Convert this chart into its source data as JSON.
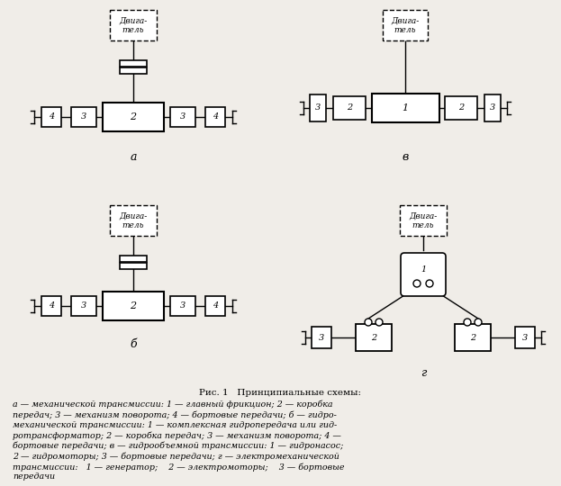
{
  "bg_color": "#f0ede8",
  "title_text": "Рис. 1   Принципиальные схемы:",
  "caption_lines": [
    "а — механической трансмиссии: 1 — главный фрикцион; 2 — коробка",
    "передач; 3 — механизм поворота; 4 — бортовые передачи; б — гидро-",
    "механической трансмиссии: 1 — комплексная гидропередача или гид-",
    "ротрансформатор; 2 — коробка передач; 3 — механизм поворота; 4 —",
    "бортовые передачи; в — гидрообъемной трансмиссии: 1 — гидронасос;",
    "2 — гидромоторы; 3 — бортовые передачи; г — электромеханической",
    "трансмиссии:   1 — генератор;    2 — электромоторы;    3 — бортовые",
    "передачи"
  ]
}
